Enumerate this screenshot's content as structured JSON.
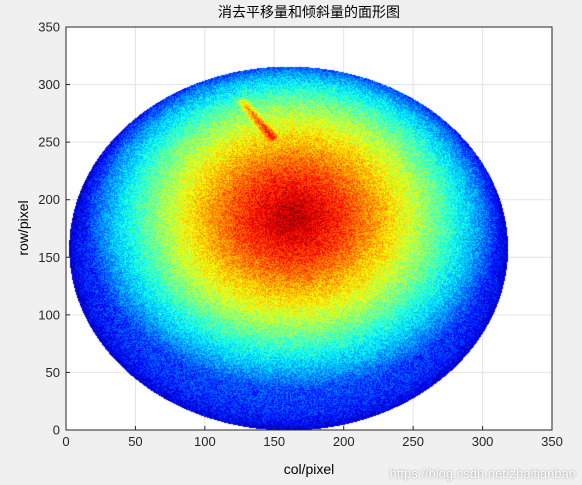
{
  "chart_data": {
    "type": "heatmap",
    "title": "消去平移量和倾斜量的面形图",
    "xlabel": "col/pixel",
    "ylabel": "row/pixel",
    "xlim": [
      0,
      350
    ],
    "ylim": [
      0,
      350
    ],
    "xticks": [
      0,
      50,
      100,
      150,
      200,
      250,
      300,
      350
    ],
    "yticks": [
      0,
      50,
      100,
      150,
      200,
      250,
      300,
      350
    ],
    "grid": true,
    "colormap": "jet",
    "region": {
      "shape": "ellipse",
      "center_x": 160,
      "center_y": 158,
      "radius_x": 158,
      "radius_y": 158
    },
    "peak": {
      "x": 163,
      "y": 185,
      "level": 0.95
    },
    "edge_level": 0.2,
    "feature_streak": {
      "x_from": 127,
      "y_from": 285,
      "x_to": 148,
      "y_to": 255
    },
    "colors": {
      "axes_background": "#ffffff",
      "figure_background": "#f0f0f0",
      "grid": "#e3e3e3",
      "axis_line": "#262626"
    }
  },
  "watermark": "https://blog.csdn.net/zhaitianbao"
}
